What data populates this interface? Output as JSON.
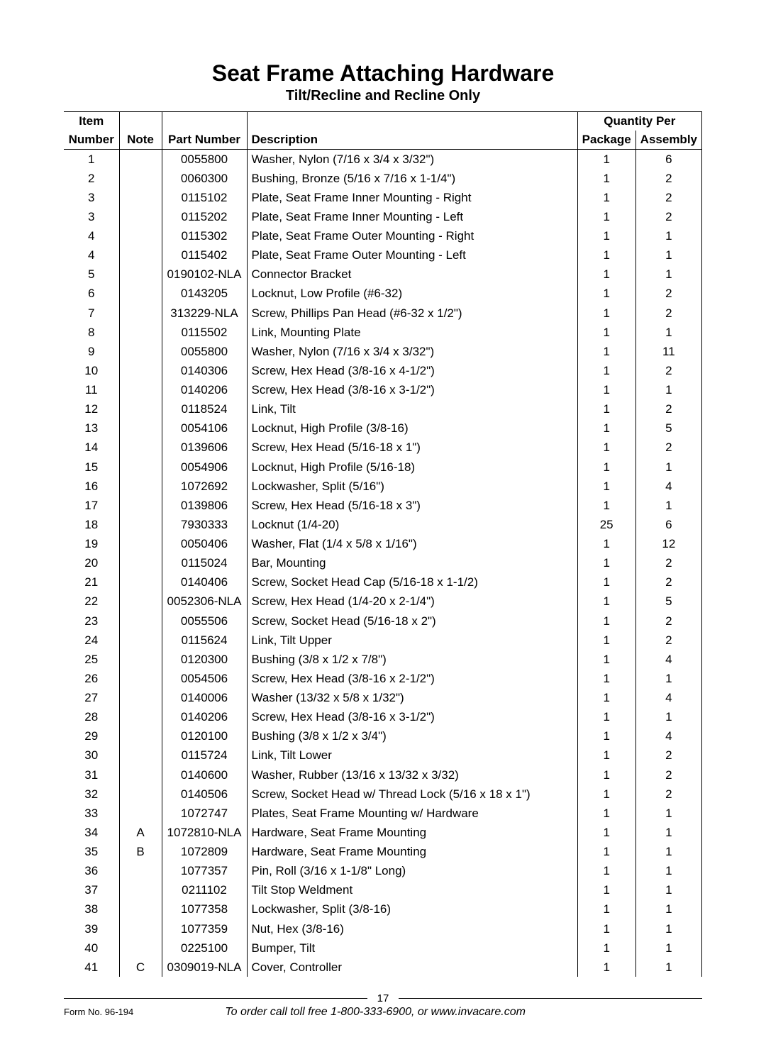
{
  "title": "Seat Frame Attaching Hardware",
  "subtitle": "Tilt/Recline and Recline Only",
  "headers": {
    "item_line1": "Item",
    "item_line2": "Number",
    "note": "Note",
    "part": "Part Number",
    "desc": "Description",
    "qty": "Quantity Per",
    "pkg": "Package",
    "asm": "Assembly"
  },
  "rows": [
    {
      "item": "1",
      "note": "",
      "part": "0055800",
      "desc": "Washer, Nylon (7/16 x 3/4 x 3/32\")",
      "pkg": "1",
      "asm": "6"
    },
    {
      "item": "2",
      "note": "",
      "part": "0060300",
      "desc": "Bushing, Bronze (5/16 x 7/16 x 1-1/4\")",
      "pkg": "1",
      "asm": "2"
    },
    {
      "item": "3",
      "note": "",
      "part": "0115102",
      "desc": "Plate, Seat Frame Inner Mounting - Right",
      "pkg": "1",
      "asm": "2"
    },
    {
      "item": "3",
      "note": "",
      "part": "0115202",
      "desc": "Plate, Seat Frame Inner Mounting - Left",
      "pkg": "1",
      "asm": "2"
    },
    {
      "item": "4",
      "note": "",
      "part": "0115302",
      "desc": "Plate, Seat Frame Outer Mounting - Right",
      "pkg": "1",
      "asm": "1"
    },
    {
      "item": "4",
      "note": "",
      "part": "0115402",
      "desc": "Plate, Seat Frame Outer Mounting - Left",
      "pkg": "1",
      "asm": "1"
    },
    {
      "item": "5",
      "note": "",
      "part": "0190102-NLA",
      "desc": "Connector Bracket",
      "pkg": "1",
      "asm": "1"
    },
    {
      "item": "6",
      "note": "",
      "part": "0143205",
      "desc": "Locknut, Low Profile (#6-32)",
      "pkg": "1",
      "asm": "2"
    },
    {
      "item": "7",
      "note": "",
      "part": "313229-NLA",
      "desc": "Screw, Phillips Pan Head  (#6-32 x 1/2\")",
      "pkg": "1",
      "asm": "2"
    },
    {
      "item": "8",
      "note": "",
      "part": "0115502",
      "desc": "Link, Mounting Plate",
      "pkg": "1",
      "asm": "1"
    },
    {
      "item": "9",
      "note": "",
      "part": "0055800",
      "desc": "Washer, Nylon (7/16 x 3/4 x 3/32\")",
      "pkg": "1",
      "asm": "11"
    },
    {
      "item": "10",
      "note": "",
      "part": "0140306",
      "desc": "Screw, Hex Head  (3/8-16 x 4-1/2\")",
      "pkg": "1",
      "asm": "2"
    },
    {
      "item": "11",
      "note": "",
      "part": "0140206",
      "desc": "Screw, Hex Head (3/8-16 x 3-1/2\")",
      "pkg": "1",
      "asm": "1"
    },
    {
      "item": "12",
      "note": "",
      "part": "0118524",
      "desc": "Link, Tilt",
      "pkg": "1",
      "asm": "2"
    },
    {
      "item": "13",
      "note": "",
      "part": "0054106",
      "desc": "Locknut, High Profile (3/8-16)",
      "pkg": "1",
      "asm": "5"
    },
    {
      "item": "14",
      "note": "",
      "part": "0139606",
      "desc": "Screw, Hex Head  (5/16-18 x 1\")",
      "pkg": "1",
      "asm": "2"
    },
    {
      "item": "15",
      "note": "",
      "part": "0054906",
      "desc": "Locknut, High Profile (5/16-18)",
      "pkg": "1",
      "asm": "1"
    },
    {
      "item": "16",
      "note": "",
      "part": "1072692",
      "desc": "Lockwasher, Split (5/16\")",
      "pkg": "1",
      "asm": "4"
    },
    {
      "item": "17",
      "note": "",
      "part": "0139806",
      "desc": "Screw, Hex Head (5/16-18 x 3\")",
      "pkg": "1",
      "asm": "1"
    },
    {
      "item": "18",
      "note": "",
      "part": "7930333",
      "desc": "Locknut (1/4-20)",
      "pkg": "25",
      "asm": "6"
    },
    {
      "item": "19",
      "note": "",
      "part": "0050406",
      "desc": "Washer, Flat (1/4 x 5/8 x 1/16\")",
      "pkg": "1",
      "asm": "12"
    },
    {
      "item": "20",
      "note": "",
      "part": "0115024",
      "desc": "Bar, Mounting",
      "pkg": "1",
      "asm": "2"
    },
    {
      "item": "21",
      "note": "",
      "part": "0140406",
      "desc": "Screw, Socket Head Cap (5/16-18 x 1-1/2)",
      "pkg": "1",
      "asm": "2"
    },
    {
      "item": "22",
      "note": "",
      "part": "0052306-NLA",
      "desc": "Screw, Hex Head  (1/4-20 x 2-1/4\")",
      "pkg": "1",
      "asm": "5"
    },
    {
      "item": "23",
      "note": "",
      "part": "0055506",
      "desc": "Screw, Socket Head (5/16-18 x 2\")",
      "pkg": "1",
      "asm": "2"
    },
    {
      "item": "24",
      "note": "",
      "part": "0115624",
      "desc": "Link, Tilt Upper",
      "pkg": "1",
      "asm": "2"
    },
    {
      "item": "25",
      "note": "",
      "part": "0120300",
      "desc": "Bushing (3/8 x 1/2 x 7/8\")",
      "pkg": "1",
      "asm": "4"
    },
    {
      "item": "26",
      "note": "",
      "part": "0054506",
      "desc": "Screw, Hex Head  (3/8-16 x 2-1/2\")",
      "pkg": "1",
      "asm": "1"
    },
    {
      "item": "27",
      "note": "",
      "part": "0140006",
      "desc": "Washer (13/32 x 5/8 x 1/32\")",
      "pkg": "1",
      "asm": "4"
    },
    {
      "item": "28",
      "note": "",
      "part": "0140206",
      "desc": "Screw, Hex Head (3/8-16 x 3-1/2\")",
      "pkg": "1",
      "asm": "1"
    },
    {
      "item": "29",
      "note": "",
      "part": "0120100",
      "desc": "Bushing  (3/8 x 1/2 x 3/4\")",
      "pkg": "1",
      "asm": "4"
    },
    {
      "item": "30",
      "note": "",
      "part": "0115724",
      "desc": "Link, Tilt Lower",
      "pkg": "1",
      "asm": "2"
    },
    {
      "item": "31",
      "note": "",
      "part": "0140600",
      "desc": "Washer, Rubber (13/16 x 13/32 x 3/32)",
      "pkg": "1",
      "asm": "2"
    },
    {
      "item": "32",
      "note": "",
      "part": "0140506",
      "desc": "Screw, Socket Head w/ Thread Lock (5/16 x 18 x 1\")",
      "pkg": "1",
      "asm": "2"
    },
    {
      "item": "33",
      "note": "",
      "part": "1072747",
      "desc": "Plates, Seat Frame Mounting w/ Hardware",
      "pkg": "1",
      "asm": "1"
    },
    {
      "item": "34",
      "note": "A",
      "part": "1072810-NLA",
      "desc": "Hardware, Seat Frame Mounting",
      "pkg": "1",
      "asm": "1"
    },
    {
      "item": "35",
      "note": "B",
      "part": "1072809",
      "desc": "Hardware, Seat Frame Mounting",
      "pkg": "1",
      "asm": "1"
    },
    {
      "item": "36",
      "note": "",
      "part": "1077357",
      "desc": "Pin, Roll  (3/16 x 1-1/8\" Long)",
      "pkg": "1",
      "asm": "1"
    },
    {
      "item": "37",
      "note": "",
      "part": "0211102",
      "desc": "Tilt Stop Weldment",
      "pkg": "1",
      "asm": "1"
    },
    {
      "item": "38",
      "note": "",
      "part": "1077358",
      "desc": "Lockwasher, Split (3/8-16)",
      "pkg": "1",
      "asm": "1"
    },
    {
      "item": "39",
      "note": "",
      "part": "1077359",
      "desc": "Nut, Hex (3/8-16)",
      "pkg": "1",
      "asm": "1"
    },
    {
      "item": "40",
      "note": "",
      "part": "0225100",
      "desc": "Bumper, Tilt",
      "pkg": "1",
      "asm": "1"
    },
    {
      "item": "41",
      "note": "C",
      "part": "0309019-NLA",
      "desc": "Cover, Controller",
      "pkg": "1",
      "asm": "1"
    }
  ],
  "footer": {
    "page_number": "17",
    "form_no": "Form No.  96-194",
    "order_line": "To order call toll free 1-800-333-6900, or www.invacare.com"
  }
}
